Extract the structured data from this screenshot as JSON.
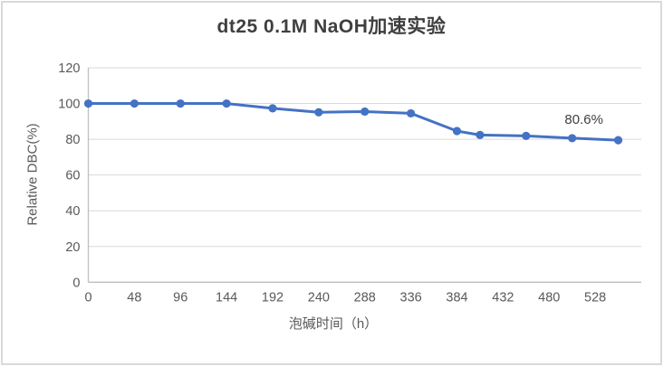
{
  "chart_data": {
    "type": "line",
    "title": "dt25 0.1M NaOH加速实验",
    "xlabel": "泡碱时间（h）",
    "ylabel": "Relative DBC(%)",
    "x": [
      0,
      48,
      96,
      144,
      192,
      240,
      288,
      336,
      384,
      408,
      456,
      504,
      552
    ],
    "values": [
      100,
      100,
      100,
      100,
      97.3,
      95.1,
      95.5,
      94.5,
      84.6,
      82.4,
      81.9,
      80.6,
      79.5
    ],
    "series_name": "Relative DBC",
    "xticks": [
      0,
      48,
      96,
      144,
      192,
      240,
      288,
      336,
      384,
      432,
      480,
      528
    ],
    "yticks": [
      0,
      20,
      40,
      60,
      80,
      100,
      120
    ],
    "xlim": [
      0,
      576
    ],
    "ylim": [
      0,
      120
    ],
    "grid": true,
    "legend": "none",
    "line_color": "#4472C4",
    "marker_color": "#4472C4",
    "gridline_color": "#d9d9d9",
    "axis_line_color": "#bfbfbf",
    "tick_label_color": "#595959",
    "annotation": {
      "text": "80.6%",
      "x": 504,
      "y": 80.6
    }
  }
}
